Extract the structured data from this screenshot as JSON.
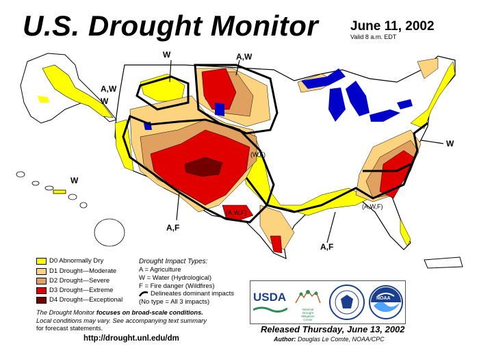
{
  "title": "U.S. Drought Monitor",
  "date": "June 11, 2002",
  "valid_time": "Valid 8 a.m. EDT",
  "legend": [
    {
      "label": "D0 Abnormally Dry",
      "color": "#ffff00"
    },
    {
      "label": "D1 Drought—Moderate",
      "color": "#fcd37f"
    },
    {
      "label": "D2 Drought—Severe",
      "color": "#e0a060"
    },
    {
      "label": "D3 Drought—Extreme",
      "color": "#e00000"
    },
    {
      "label": "D4 Drought—Exceptional",
      "color": "#730000"
    }
  ],
  "impact_types": {
    "heading": "Drought Impact Types:",
    "agriculture": "A = Agriculture",
    "water": "W = Water (Hydrological)",
    "fire": "F = Fire danger (Wildfires)",
    "delineates": "Delineates dominant impacts",
    "no_type": "(No type = All 3 impacts)"
  },
  "footnote": {
    "line1_prefix": "The Drought Monitor ",
    "line1_emph": "focuses on broad-scale conditions.",
    "line2": "Local conditions may vary. See accompanying text summary",
    "line3": "for forecast statements."
  },
  "url": "http://drought.unl.edu/dm",
  "released": "Released Thursday, June 13, 2002",
  "author_label": "Author:",
  "author_name": "Douglas Le Comte, NOAA/CPC",
  "logos": {
    "usda": "USDA",
    "ndmc_line1": "National",
    "ndmc_line2": "Drought",
    "ndmc_line3": "Mitigation",
    "ndmc_line4": "Center",
    "noaa": "NOAA"
  },
  "map_labels": {
    "w_northwest": "W",
    "aw_top": "A,W",
    "aw_alaska": "A,W",
    "w_alaska": "W",
    "w_hawaii": "W",
    "w_east": "W",
    "wf_colorado": "(W,F)",
    "awf_texas": "(A,W,F)",
    "awf_southeast": "(A,W,F)",
    "af_west": "A,F",
    "af_texas": "A,F"
  },
  "colors": {
    "water": "#0000c8",
    "land": "#ffffff",
    "d0": "#ffff00",
    "d1": "#fcd37f",
    "d2": "#e0a060",
    "d3": "#e00000",
    "d4": "#730000"
  }
}
